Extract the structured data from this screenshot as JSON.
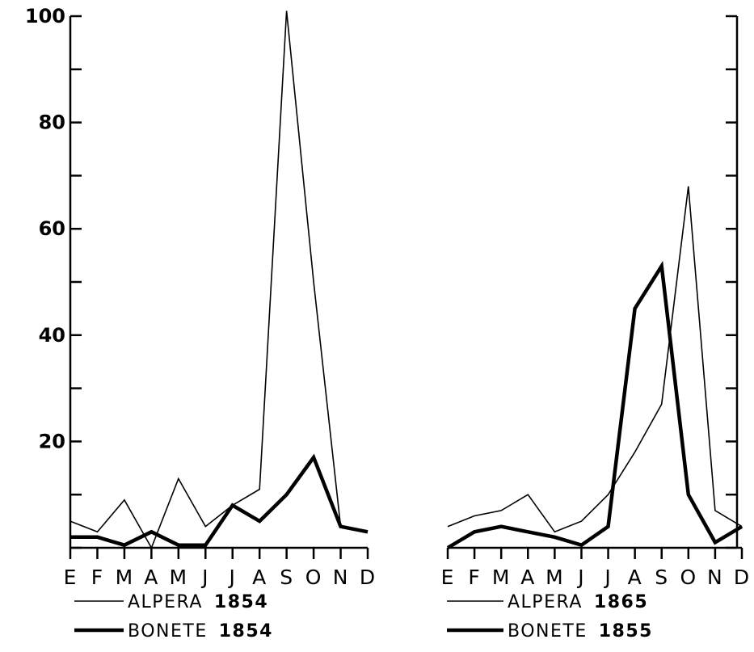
{
  "chart_data": [
    {
      "type": "line",
      "categories": [
        "E",
        "F",
        "M",
        "A",
        "M",
        "J",
        "J",
        "A",
        "S",
        "O",
        "N",
        "D"
      ],
      "ylim": [
        0,
        100
      ],
      "yticks": [
        0,
        10,
        20,
        30,
        40,
        50,
        60,
        70,
        80,
        90,
        100
      ],
      "ytick_labels": [
        "",
        "",
        "20",
        "",
        "40",
        "",
        "60",
        "",
        "80",
        "",
        "100"
      ],
      "y_axis_side": "left",
      "grid": false,
      "legend_position": "bottom",
      "series": [
        {
          "name": "ALPERA 1854",
          "legend_name": "ALPERA",
          "legend_year": "1854",
          "style": "thin",
          "color": "#000000",
          "values": [
            5,
            3,
            9,
            0,
            13,
            4,
            8,
            11,
            101,
            50,
            4,
            3
          ]
        },
        {
          "name": "BONETE 1854",
          "legend_name": "BONETE",
          "legend_year": "1854",
          "style": "thick",
          "color": "#000000",
          "values": [
            2,
            2,
            0.5,
            3,
            0.5,
            0.5,
            8,
            5,
            10,
            17,
            4,
            3
          ]
        }
      ]
    },
    {
      "type": "line",
      "categories": [
        "E",
        "F",
        "M",
        "A",
        "M",
        "J",
        "J",
        "A",
        "S",
        "O",
        "N",
        "D"
      ],
      "ylim": [
        0,
        100
      ],
      "yticks": [
        0,
        10,
        20,
        30,
        40,
        50,
        60,
        70,
        80,
        90,
        100
      ],
      "ytick_labels": [
        "",
        "",
        "",
        "",
        "",
        "",
        "",
        "",
        "",
        "",
        ""
      ],
      "y_axis_side": "right",
      "grid": false,
      "legend_position": "bottom",
      "series": [
        {
          "name": "ALPERA 1865",
          "legend_name": "ALPERA",
          "legend_year": "1865",
          "style": "thin",
          "color": "#000000",
          "values": [
            4,
            6,
            7,
            10,
            3,
            5,
            10,
            18,
            27,
            68,
            7,
            4
          ]
        },
        {
          "name": "BONETE 1855",
          "legend_name": "BONETE",
          "legend_year": "1855",
          "style": "thick",
          "color": "#000000",
          "values": [
            0,
            3,
            4,
            3,
            2,
            0.5,
            4,
            45,
            53,
            10,
            1,
            4
          ]
        }
      ]
    }
  ]
}
